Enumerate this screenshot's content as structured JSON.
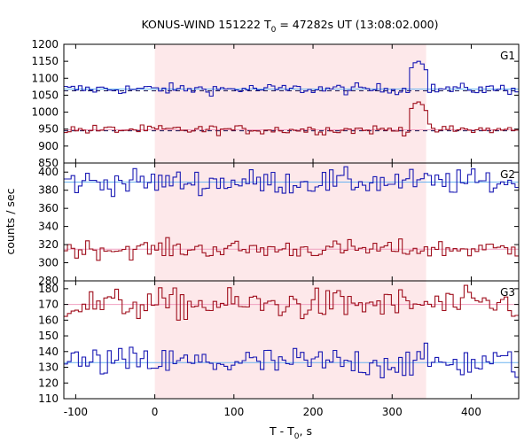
{
  "chart_data": {
    "type": "line",
    "title_main": "KONUS-WIND 151222 T",
    "title_sub": "0",
    "title_rest": " = 47282s UT (13:08:02.000)",
    "xlabel_main": "T - T",
    "xlabel_sub": "0",
    "xlabel_rest": ", s",
    "ylabel": "counts / sec",
    "xlim": [
      -115,
      460
    ],
    "xticks": [
      -100,
      0,
      100,
      200,
      300,
      400
    ],
    "xtick_labels": [
      "-100",
      "0",
      "100",
      "200",
      "300",
      "400"
    ],
    "highlight_interval": [
      0,
      343
    ],
    "colors": {
      "highlight": "#fde8ea",
      "blue_series": "#1a1ab4",
      "red_series": "#a0101e",
      "blue_fit": "#6ab4f0",
      "red_fit": "#f0a0c0",
      "bg_line": "#101050"
    },
    "panels": [
      {
        "label": "G1",
        "ylim": [
          850,
          1200
        ],
        "yticks": [
          850,
          900,
          950,
          1000,
          1050,
          1100,
          1150,
          1200
        ],
        "ytick_labels": [
          "850",
          "900",
          "950",
          "1000",
          "1050",
          "1100",
          "1150",
          "1200"
        ],
        "series": [
          {
            "color": "blue",
            "mean": 1068,
            "noise": 8,
            "dashed_level": 1063,
            "fit_level": 1068,
            "burst": [
              {
                "t0": 318,
                "t1": 343,
                "peak": 1150
              }
            ]
          },
          {
            "color": "red",
            "mean": 948,
            "noise": 7,
            "dashed_level": 945,
            "fit_level": 948,
            "burst": [
              {
                "t0": 318,
                "t1": 343,
                "peak": 1030
              }
            ]
          }
        ]
      },
      {
        "label": "G2",
        "ylim": [
          280,
          410
        ],
        "yticks": [
          280,
          300,
          320,
          340,
          360,
          380,
          400
        ],
        "ytick_labels": [
          "280",
          "300",
          "320",
          "340",
          "360",
          "380",
          "400"
        ],
        "series": [
          {
            "color": "blue",
            "mean": 389,
            "noise": 7,
            "fit_level": 389
          },
          {
            "color": "red",
            "mean": 315,
            "noise": 5,
            "fit_level": 315
          }
        ]
      },
      {
        "label": "G3",
        "ylim": [
          110,
          185
        ],
        "yticks": [
          110,
          120,
          130,
          140,
          150,
          160,
          170,
          180
        ],
        "ytick_labels": [
          "110",
          "120",
          "130",
          "140",
          "150",
          "160",
          "170",
          "180"
        ],
        "series": [
          {
            "color": "red",
            "mean": 170,
            "noise": 5,
            "fit_level": 170
          },
          {
            "color": "blue",
            "mean": 133,
            "noise": 5,
            "fit_level": 133
          }
        ]
      }
    ]
  }
}
